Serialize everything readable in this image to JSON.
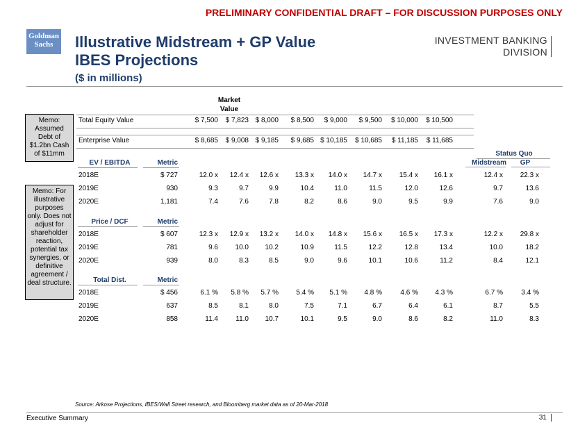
{
  "banner": "PRELIMINARY CONFIDENTIAL DRAFT – FOR DISCUSSION PURPOSES ONLY",
  "logo": {
    "line1": "Goldman",
    "line2": "Sachs"
  },
  "title_line1": "Illustrative Midstream + GP Value",
  "title_line2": "IBES Projections",
  "subtitle": "($ in millions)",
  "division": {
    "line1": "INVESTMENT BANKING",
    "line2": "DIVISION"
  },
  "memo1": "Memo: Assumed Debt of $1.2bn Cash of $11mm",
  "memo2": "Memo: For illustrative purposes only. Does not adjust for shareholder reaction, potential tax synergies, or definitive agreement / deal structure.",
  "market_value_header": "Market Value",
  "status_quo_header": "Status Quo",
  "equity": {
    "label": "Total Equity Value",
    "values": [
      "$ 7,500",
      "$ 7,823",
      "$ 8,000",
      "$ 8,500",
      "$ 9,000",
      "$ 9,500",
      "$ 10,000",
      "$ 10,500"
    ]
  },
  "ev": {
    "label": "Enterprise Value",
    "values": [
      "$ 8,685",
      "$ 9,008",
      "$ 9,185",
      "$ 9,685",
      "$ 10,185",
      "$ 10,685",
      "$ 11,185",
      "$ 11,685"
    ]
  },
  "sq_cols": [
    "Midstream",
    "GP"
  ],
  "sections": [
    {
      "name": "EV / EBITDA",
      "metric_header": "Metric",
      "rows": [
        {
          "year": "2018E",
          "metric": "$ 727",
          "vals": [
            "12.0 x",
            "12.4 x",
            "12.6 x",
            "13.3 x",
            "14.0 x",
            "14.7 x",
            "15.4 x",
            "16.1 x"
          ],
          "sq": [
            "12.4 x",
            "22.3 x"
          ]
        },
        {
          "year": "2019E",
          "metric": "930",
          "vals": [
            "9.3",
            "9.7",
            "9.9",
            "10.4",
            "11.0",
            "11.5",
            "12.0",
            "12.6"
          ],
          "sq": [
            "9.7",
            "13.6"
          ]
        },
        {
          "year": "2020E",
          "metric": "1,181",
          "vals": [
            "7.4",
            "7.6",
            "7.8",
            "8.2",
            "8.6",
            "9.0",
            "9.5",
            "9.9"
          ],
          "sq": [
            "7.6",
            "9.0"
          ]
        }
      ]
    },
    {
      "name": "Price / DCF",
      "metric_header": "Metric",
      "rows": [
        {
          "year": "2018E",
          "metric": "$ 607",
          "vals": [
            "12.3 x",
            "12.9 x",
            "13.2 x",
            "14.0 x",
            "14.8 x",
            "15.6 x",
            "16.5 x",
            "17.3 x"
          ],
          "sq": [
            "12.2 x",
            "29.8 x"
          ]
        },
        {
          "year": "2019E",
          "metric": "781",
          "vals": [
            "9.6",
            "10.0",
            "10.2",
            "10.9",
            "11.5",
            "12.2",
            "12.8",
            "13.4"
          ],
          "sq": [
            "10.0",
            "18.2"
          ]
        },
        {
          "year": "2020E",
          "metric": "939",
          "vals": [
            "8.0",
            "8.3",
            "8.5",
            "9.0",
            "9.6",
            "10.1",
            "10.6",
            "11.2"
          ],
          "sq": [
            "8.4",
            "12.1"
          ]
        }
      ]
    },
    {
      "name": "Total Dist.",
      "metric_header": "Metric",
      "rows": [
        {
          "year": "2018E",
          "metric": "$ 456",
          "vals": [
            "6.1 %",
            "5.8 %",
            "5.7 %",
            "5.4 %",
            "5.1 %",
            "4.8 %",
            "4.6 %",
            "4.3 %"
          ],
          "sq": [
            "6.7 %",
            "3.4 %"
          ]
        },
        {
          "year": "2019E",
          "metric": "637",
          "vals": [
            "8.5",
            "8.1",
            "8.0",
            "7.5",
            "7.1",
            "6.7",
            "6.4",
            "6.1"
          ],
          "sq": [
            "8.7",
            "5.5"
          ]
        },
        {
          "year": "2020E",
          "metric": "858",
          "vals": [
            "11.4",
            "11.0",
            "10.7",
            "10.1",
            "9.5",
            "9.0",
            "8.6",
            "8.2"
          ],
          "sq": [
            "11.0",
            "8.3"
          ]
        }
      ]
    }
  ],
  "source": "Source: Arkose Projections, IBES/Wall Street research, and Bloomberg market data as of 20-Mar-2018",
  "footer": "Executive Summary",
  "page_number": "31"
}
